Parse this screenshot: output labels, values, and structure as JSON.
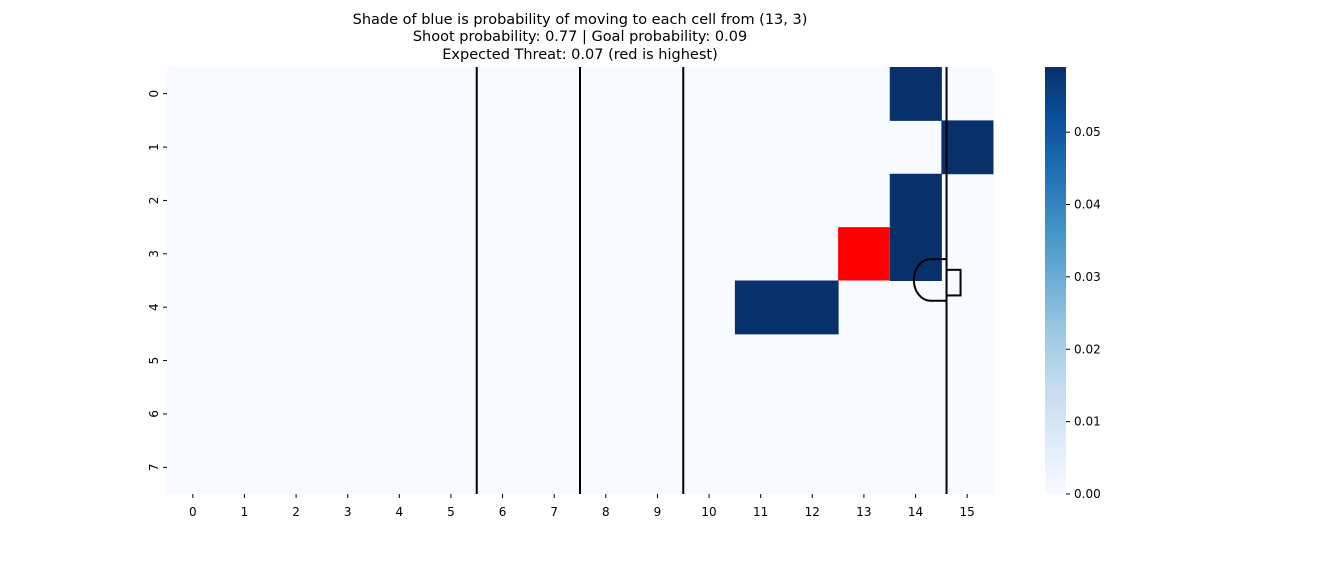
{
  "chart_data": {
    "type": "heatmap",
    "title_lines": [
      "Shade of blue is probability of moving to each cell from (13, 3)",
      "Shoot probability: 0.77 | Goal probability: 0.09",
      "Expected Threat: 0.07 (red is highest)"
    ],
    "x_ticks": [
      "0",
      "1",
      "2",
      "3",
      "4",
      "5",
      "6",
      "7",
      "8",
      "9",
      "10",
      "11",
      "12",
      "13",
      "14",
      "15"
    ],
    "y_ticks": [
      "0",
      "1",
      "2",
      "3",
      "4",
      "5",
      "6",
      "7"
    ],
    "colormap": "Blues",
    "colorbar": {
      "min": 0.0,
      "max": 0.059,
      "ticks": [
        "0.00",
        "0.01",
        "0.02",
        "0.03",
        "0.04",
        "0.05"
      ],
      "tick_values": [
        0.0,
        0.01,
        0.02,
        0.03,
        0.04,
        0.05
      ]
    },
    "base_value": 0.0,
    "cells": [
      {
        "x": 14,
        "y": 0,
        "value": 0.059
      },
      {
        "x": 15,
        "y": 1,
        "value": 0.059
      },
      {
        "x": 14,
        "y": 2,
        "value": 0.059
      },
      {
        "x": 14,
        "y": 3,
        "value": 0.059
      },
      {
        "x": 11,
        "y": 4,
        "value": 0.059
      },
      {
        "x": 12,
        "y": 4,
        "value": 0.059
      }
    ],
    "highlight_cell": {
      "x": 13,
      "y": 3,
      "color": "#ff0000"
    },
    "pitch_lines_x": [
      5.5,
      7.5,
      9.5,
      14.6
    ],
    "colors": {
      "low": "#f7fbff",
      "high": "#08306b",
      "highlight": "#ff0000",
      "lines": "#000000"
    }
  }
}
